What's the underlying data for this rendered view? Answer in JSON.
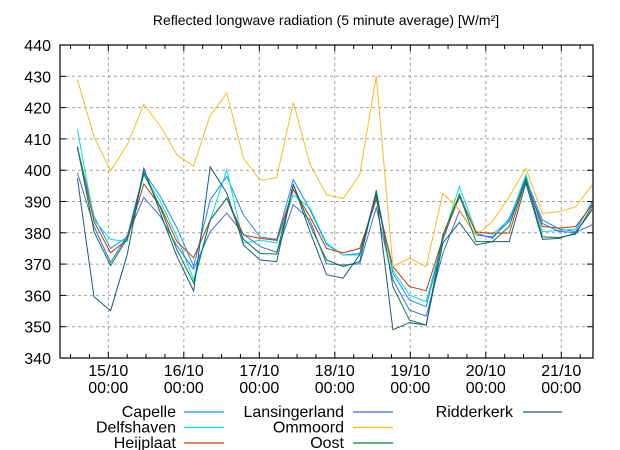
{
  "chart_data": {
    "type": "line",
    "title": "Reflected longwave  radiation (5 minute average) [W/m²]",
    "xlabel": "",
    "ylabel": "",
    "x_units": "days since 15/10 00:00",
    "xlim": [
      -0.64,
      6.42
    ],
    "ylim": [
      340,
      440
    ],
    "grid": true,
    "legend_placement": "bottom",
    "yticks": [
      340,
      350,
      360,
      370,
      380,
      390,
      400,
      410,
      420,
      430,
      440
    ],
    "xticks": [
      {
        "value": 0,
        "label": [
          "15/10",
          "00:00"
        ]
      },
      {
        "value": 1,
        "label": [
          "16/10",
          "00:00"
        ]
      },
      {
        "value": 2,
        "label": [
          "17/10",
          "00:00"
        ]
      },
      {
        "value": 3,
        "label": [
          "18/10",
          "00:00"
        ]
      },
      {
        "value": 4,
        "label": [
          "19/10",
          "00:00"
        ]
      },
      {
        "value": 5,
        "label": [
          "20/10",
          "00:00"
        ]
      },
      {
        "value": 6,
        "label": [
          "21/10",
          "00:00"
        ]
      }
    ],
    "x": [
      -0.41,
      -0.19,
      0.03,
      0.25,
      0.47,
      0.69,
      0.91,
      1.13,
      1.35,
      1.57,
      1.79,
      2.01,
      2.23,
      2.45,
      2.67,
      2.89,
      3.11,
      3.33,
      3.55,
      3.77,
      3.99,
      4.21,
      4.43,
      4.65,
      4.87,
      5.09,
      5.31,
      5.53,
      5.75,
      5.97,
      6.19,
      6.41
    ],
    "series": [
      {
        "name": "Capelle",
        "color": "#1a8cff",
        "values": [
          407.5,
          385.2,
          375.0,
          378.7,
          399.5,
          391.6,
          381.5,
          369.3,
          390.5,
          398.0,
          385.7,
          378.7,
          377.9,
          397.0,
          387.4,
          376.3,
          372.9,
          373.4,
          392.9,
          367.1,
          358.5,
          356.4,
          377.6,
          392.4,
          379.9,
          378.2,
          384.6,
          397.4,
          384.1,
          381.2,
          380.4,
          390.0
        ]
      },
      {
        "name": "Delfshaven",
        "color": "#00dede",
        "values": [
          413.1,
          384.1,
          377.9,
          377.2,
          398.5,
          390.0,
          378.7,
          365.1,
          384.1,
          400.1,
          376.7,
          377.6,
          376.8,
          392.2,
          388.0,
          376.7,
          372.9,
          372.9,
          391.3,
          368.1,
          360.1,
          358.0,
          378.2,
          394.8,
          380.4,
          379.6,
          384.1,
          398.5,
          380.4,
          380.7,
          381.2,
          389.4
        ]
      },
      {
        "name": "Heijplaat",
        "color": "#c83c00",
        "values": [
          407.0,
          383.6,
          373.6,
          377.9,
          395.6,
          388.5,
          377.2,
          372.0,
          384.1,
          391.1,
          379.3,
          378.2,
          377.6,
          393.8,
          385.2,
          375.0,
          373.6,
          375.0,
          390.7,
          369.2,
          362.8,
          361.5,
          378.2,
          391.5,
          380.1,
          379.9,
          379.9,
          396.9,
          382.0,
          381.5,
          382.0,
          388.9
        ]
      },
      {
        "name": "Lansingerland",
        "color": "#4169e1",
        "values": [
          399.2,
          382.0,
          370.5,
          379.0,
          391.3,
          385.2,
          375.8,
          368.3,
          380.4,
          386.3,
          379.6,
          375.6,
          373.8,
          389.0,
          384.1,
          370.1,
          369.7,
          370.1,
          388.1,
          365.0,
          355.3,
          353.4,
          373.4,
          387.0,
          379.3,
          378.7,
          383.6,
          396.4,
          383.0,
          380.4,
          380.1,
          382.6
        ]
      },
      {
        "name": "Ommoord",
        "color": "#ffb820",
        "values": [
          429.0,
          410.7,
          399.8,
          408.1,
          421.0,
          414.1,
          404.9,
          401.3,
          417.6,
          424.6,
          403.8,
          396.8,
          397.6,
          421.7,
          402.0,
          392.1,
          391.0,
          398.5,
          430.1,
          369.2,
          371.9,
          369.2,
          392.6,
          387.3,
          379.3,
          383.6,
          391.5,
          400.6,
          386.2,
          386.7,
          388.3,
          395.3
        ]
      },
      {
        "name": "Oost",
        "color": "#008040",
        "values": [
          407.5,
          380.4,
          369.5,
          378.2,
          399.0,
          388.0,
          374.5,
          364.0,
          384.1,
          391.1,
          377.9,
          373.4,
          373.2,
          395.4,
          382.6,
          371.3,
          369.2,
          370.8,
          393.6,
          362.8,
          352.1,
          350.5,
          379.3,
          392.2,
          377.2,
          377.2,
          382.0,
          397.4,
          378.7,
          378.5,
          379.6,
          388.4
        ]
      },
      {
        "name": "Ridderkerk",
        "color": "#205878",
        "values": [
          397.4,
          359.6,
          355.1,
          373.0,
          400.6,
          386.3,
          372.4,
          361.4,
          401.1,
          392.7,
          376.1,
          371.3,
          370.8,
          395.4,
          380.4,
          366.6,
          365.5,
          373.0,
          392.4,
          349.0,
          351.3,
          350.5,
          376.7,
          383.3,
          376.1,
          377.2,
          377.2,
          395.9,
          377.9,
          378.2,
          379.9,
          387.4
        ]
      }
    ]
  }
}
